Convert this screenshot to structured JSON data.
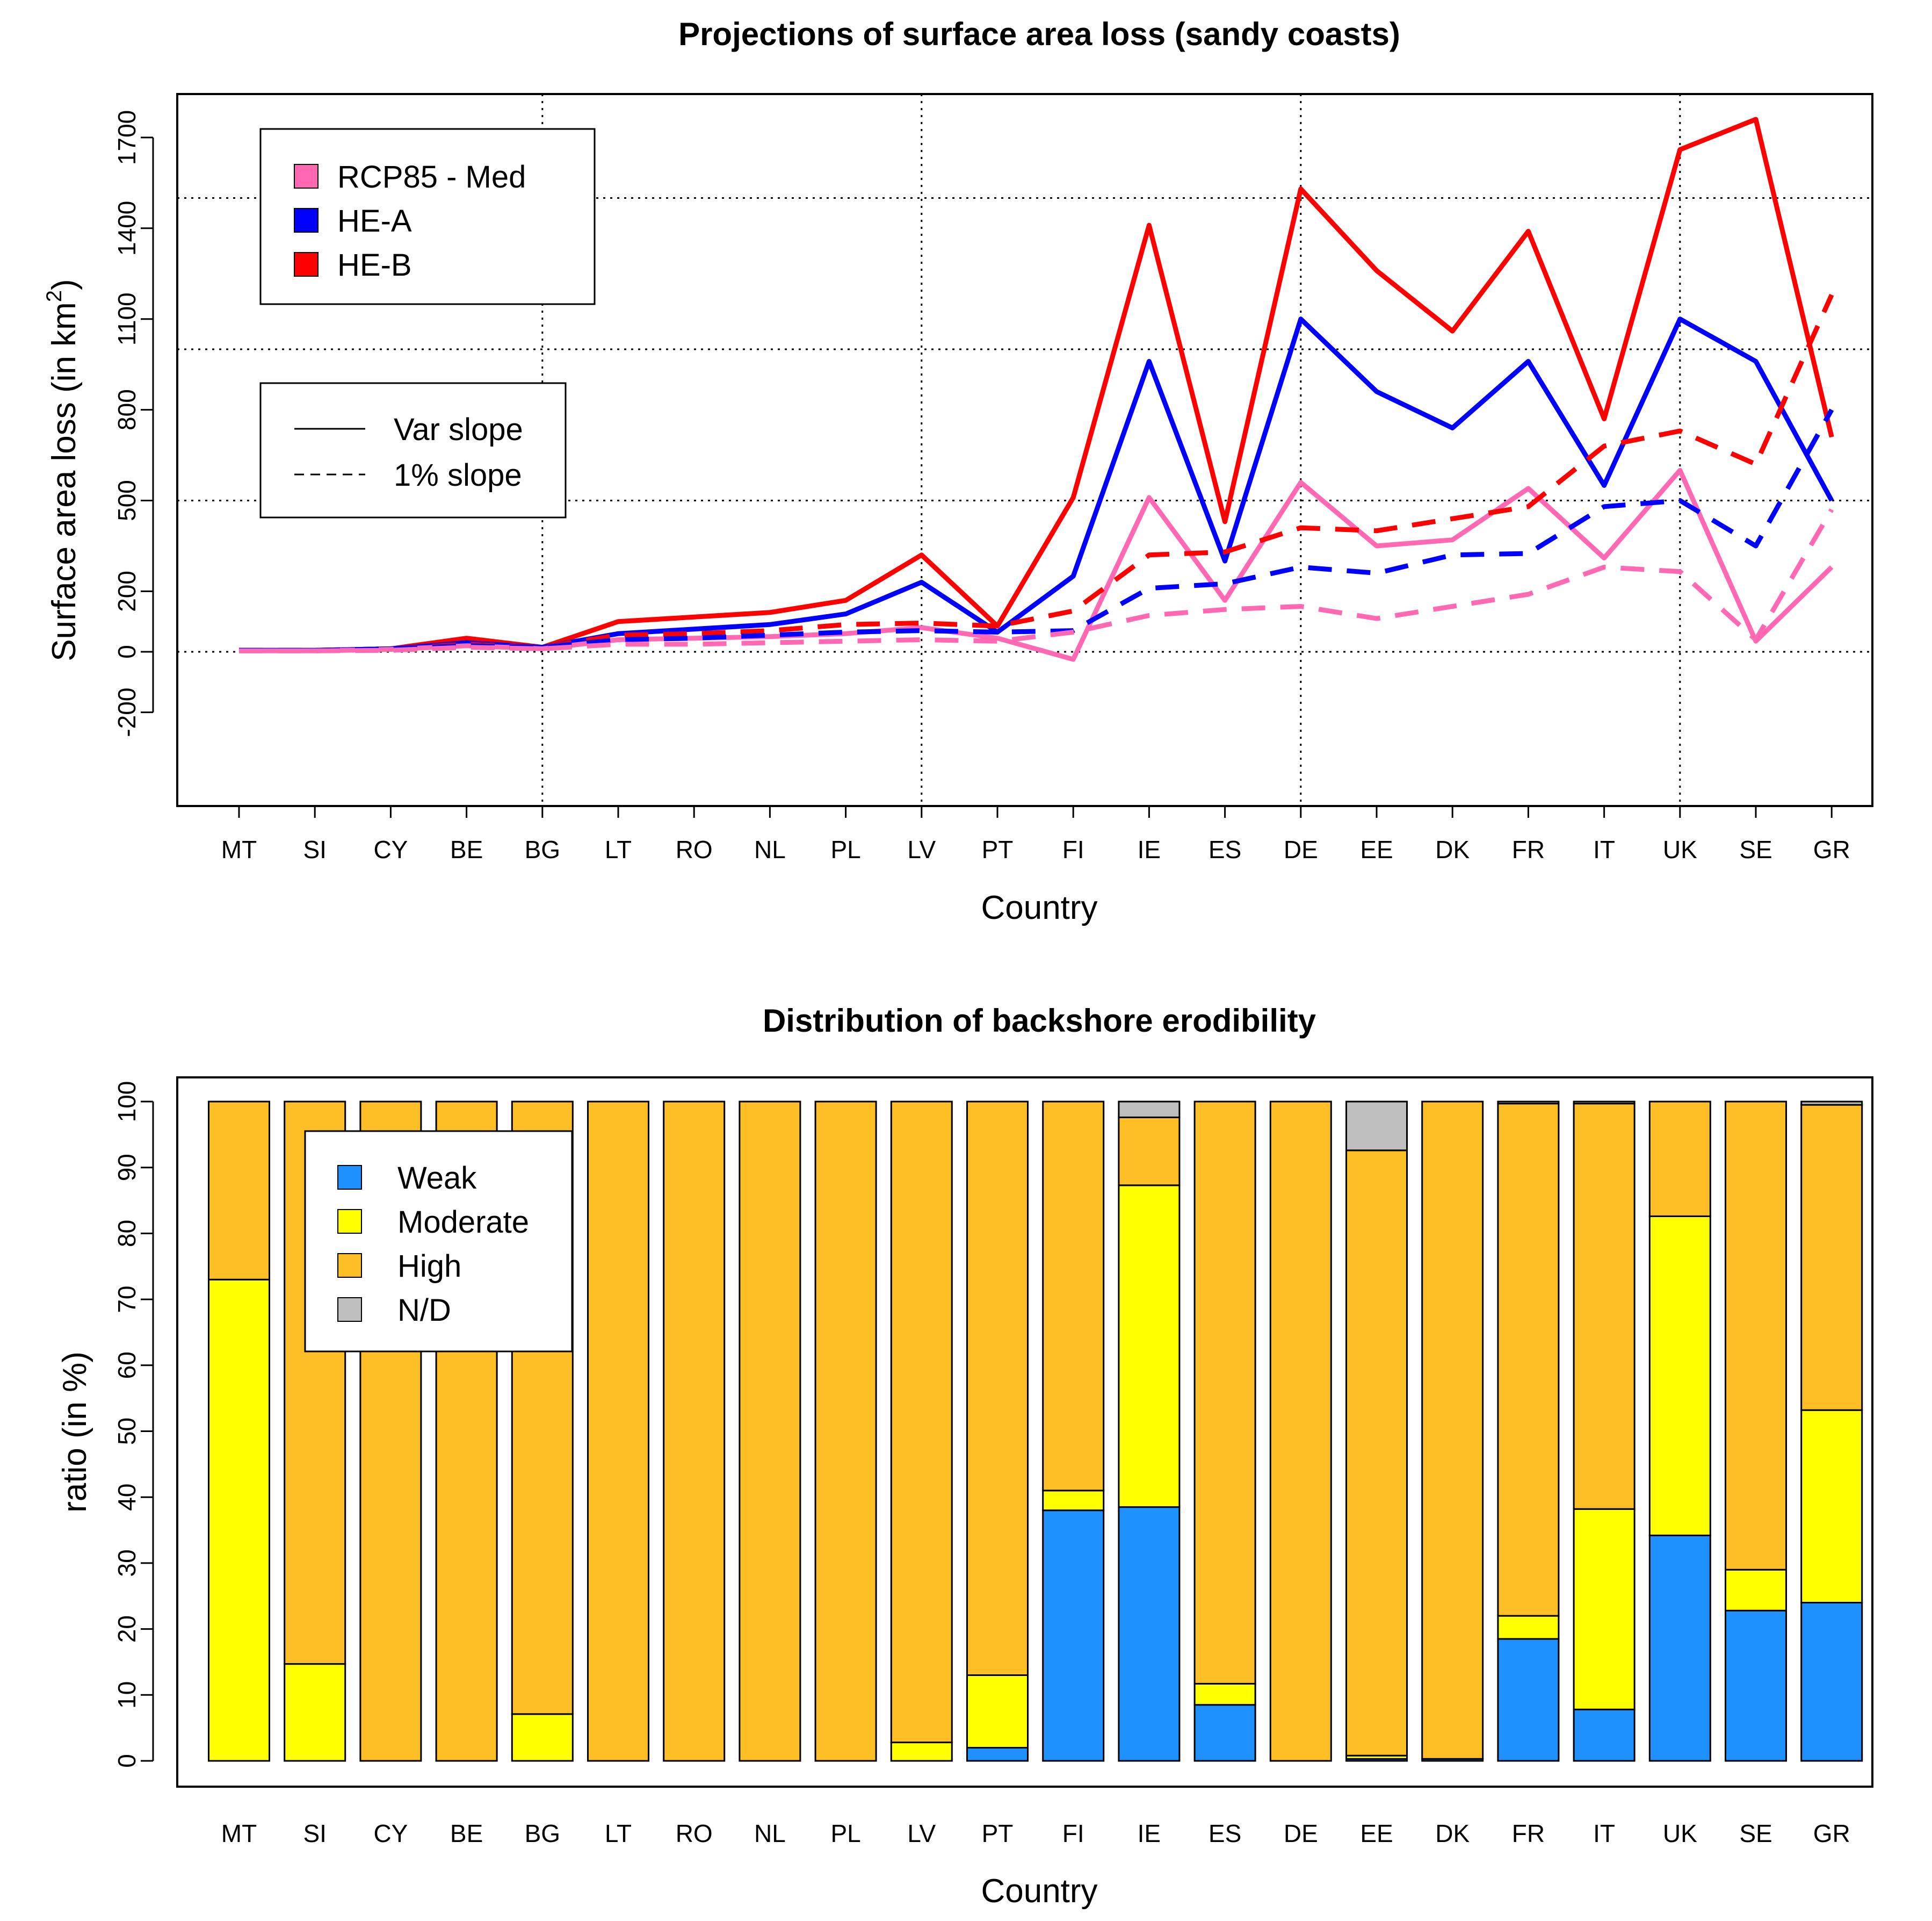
{
  "chart_data": [
    {
      "type": "line",
      "title": "Projections of surface area loss (sandy coasts)",
      "xlabel": "Country",
      "ylabel_main": "Surface area loss (in km",
      "ylabel_sup": "2",
      "ylabel_end": ")",
      "categories": [
        "MT",
        "SI",
        "CY",
        "BE",
        "BG",
        "LT",
        "RO",
        "NL",
        "PL",
        "LV",
        "PT",
        "FI",
        "IE",
        "ES",
        "DE",
        "EE",
        "DK",
        "FR",
        "IT",
        "UK",
        "SE",
        "GR"
      ],
      "y_tick_values": [
        -200,
        0,
        200,
        500,
        800,
        1100,
        1400,
        1700
      ],
      "y_tick_labels": [
        "-200",
        "0",
        "200",
        "500",
        "800",
        "1100",
        "1400",
        "1700"
      ],
      "ylim": [
        -200,
        1700
      ],
      "grid": {
        "x_after_categories": [
          "BG",
          "LV",
          "DE",
          "UK"
        ],
        "y_values": [
          0,
          500,
          1000,
          1500
        ]
      },
      "series": [
        {
          "name": "HE-B",
          "style": "Var slope",
          "color": "#ff0000",
          "values": [
            5,
            5,
            10,
            45,
            15,
            100,
            115,
            130,
            170,
            320,
            85,
            510,
            1410,
            430,
            1530,
            1260,
            1060,
            1390,
            770,
            1660,
            1760,
            710
          ]
        },
        {
          "name": "HE-A",
          "style": "Var slope",
          "color": "#0000ff",
          "values": [
            5,
            5,
            10,
            30,
            15,
            60,
            75,
            90,
            125,
            230,
            65,
            250,
            960,
            300,
            1100,
            860,
            740,
            960,
            550,
            1100,
            960,
            500
          ]
        },
        {
          "name": "RCP85 - Med",
          "style": "Var slope",
          "color": "#ff69b4",
          "values": [
            3,
            3,
            8,
            20,
            10,
            40,
            45,
            50,
            60,
            80,
            45,
            -25,
            510,
            170,
            560,
            350,
            370,
            540,
            310,
            600,
            35,
            280
          ]
        },
        {
          "name": "HE-B",
          "style": "1% slope",
          "color": "#ff0000",
          "values": [
            5,
            5,
            10,
            25,
            15,
            55,
            60,
            70,
            90,
            95,
            85,
            135,
            320,
            330,
            410,
            400,
            440,
            480,
            680,
            730,
            620,
            1180
          ]
        },
        {
          "name": "HE-A",
          "style": "1% slope",
          "color": "#0000ff",
          "values": [
            5,
            5,
            10,
            20,
            15,
            40,
            45,
            55,
            65,
            70,
            65,
            70,
            210,
            225,
            280,
            260,
            320,
            325,
            480,
            500,
            350,
            800
          ]
        },
        {
          "name": "RCP85 - Med",
          "style": "1% slope",
          "color": "#ff69b4",
          "values": [
            3,
            3,
            5,
            15,
            10,
            25,
            25,
            30,
            35,
            40,
            35,
            65,
            120,
            140,
            150,
            110,
            150,
            190,
            280,
            265,
            40,
            470
          ]
        }
      ],
      "legend_series": [
        {
          "label": "RCP85 - Med",
          "color": "#ff69b4"
        },
        {
          "label": "HE-A",
          "color": "#0000ff"
        },
        {
          "label": "HE-B",
          "color": "#ff0000"
        }
      ],
      "legend_styles": [
        {
          "label": "Var slope",
          "dash": false
        },
        {
          "label": "1% slope",
          "dash": true
        }
      ]
    },
    {
      "type": "bar",
      "stacked": true,
      "title": "Distribution of backshore erodibility",
      "xlabel": "Country",
      "ylabel": "ratio (in %)",
      "categories": [
        "MT",
        "SI",
        "CY",
        "BE",
        "BG",
        "LT",
        "RO",
        "NL",
        "PL",
        "LV",
        "PT",
        "FI",
        "IE",
        "ES",
        "DE",
        "EE",
        "DK",
        "FR",
        "IT",
        "UK",
        "SE",
        "GR"
      ],
      "ylim": [
        0,
        100
      ],
      "y_tick_values": [
        0,
        10,
        20,
        30,
        40,
        50,
        60,
        70,
        80,
        90,
        100
      ],
      "y_tick_labels": [
        "0",
        "10",
        "20",
        "30",
        "40",
        "50",
        "60",
        "70",
        "80",
        "90",
        "100"
      ],
      "series": [
        {
          "name": "Weak",
          "color": "#1e90ff",
          "values": [
            0,
            0,
            0,
            0,
            0,
            0,
            0,
            0,
            0,
            0,
            2,
            38,
            38.5,
            8.5,
            0,
            0.3,
            0.3,
            18.5,
            7.8,
            34.2,
            22.8,
            24
          ]
        },
        {
          "name": "Moderate",
          "color": "#ffff00",
          "values": [
            73,
            14.7,
            0,
            0,
            7.1,
            0,
            0,
            0,
            0,
            2.8,
            11,
            3,
            48.8,
            3.2,
            0,
            0.5,
            0,
            3.5,
            30.4,
            48.4,
            6.2,
            29.2
          ]
        },
        {
          "name": "High",
          "color": "#fdbf25",
          "values": [
            27,
            85.3,
            100,
            100,
            92.9,
            100,
            100,
            100,
            100,
            97.2,
            87,
            59,
            10.3,
            88.3,
            100,
            91.8,
            99.7,
            77.7,
            61.5,
            17.4,
            71,
            46.3
          ]
        },
        {
          "name": "N/D",
          "color": "#bebebe",
          "values": [
            0,
            0,
            0,
            0,
            0,
            0,
            0,
            0,
            0,
            0,
            0,
            0,
            2.4,
            0,
            0,
            7.4,
            0,
            0.3,
            0.3,
            0,
            0,
            0.5
          ]
        }
      ]
    }
  ]
}
